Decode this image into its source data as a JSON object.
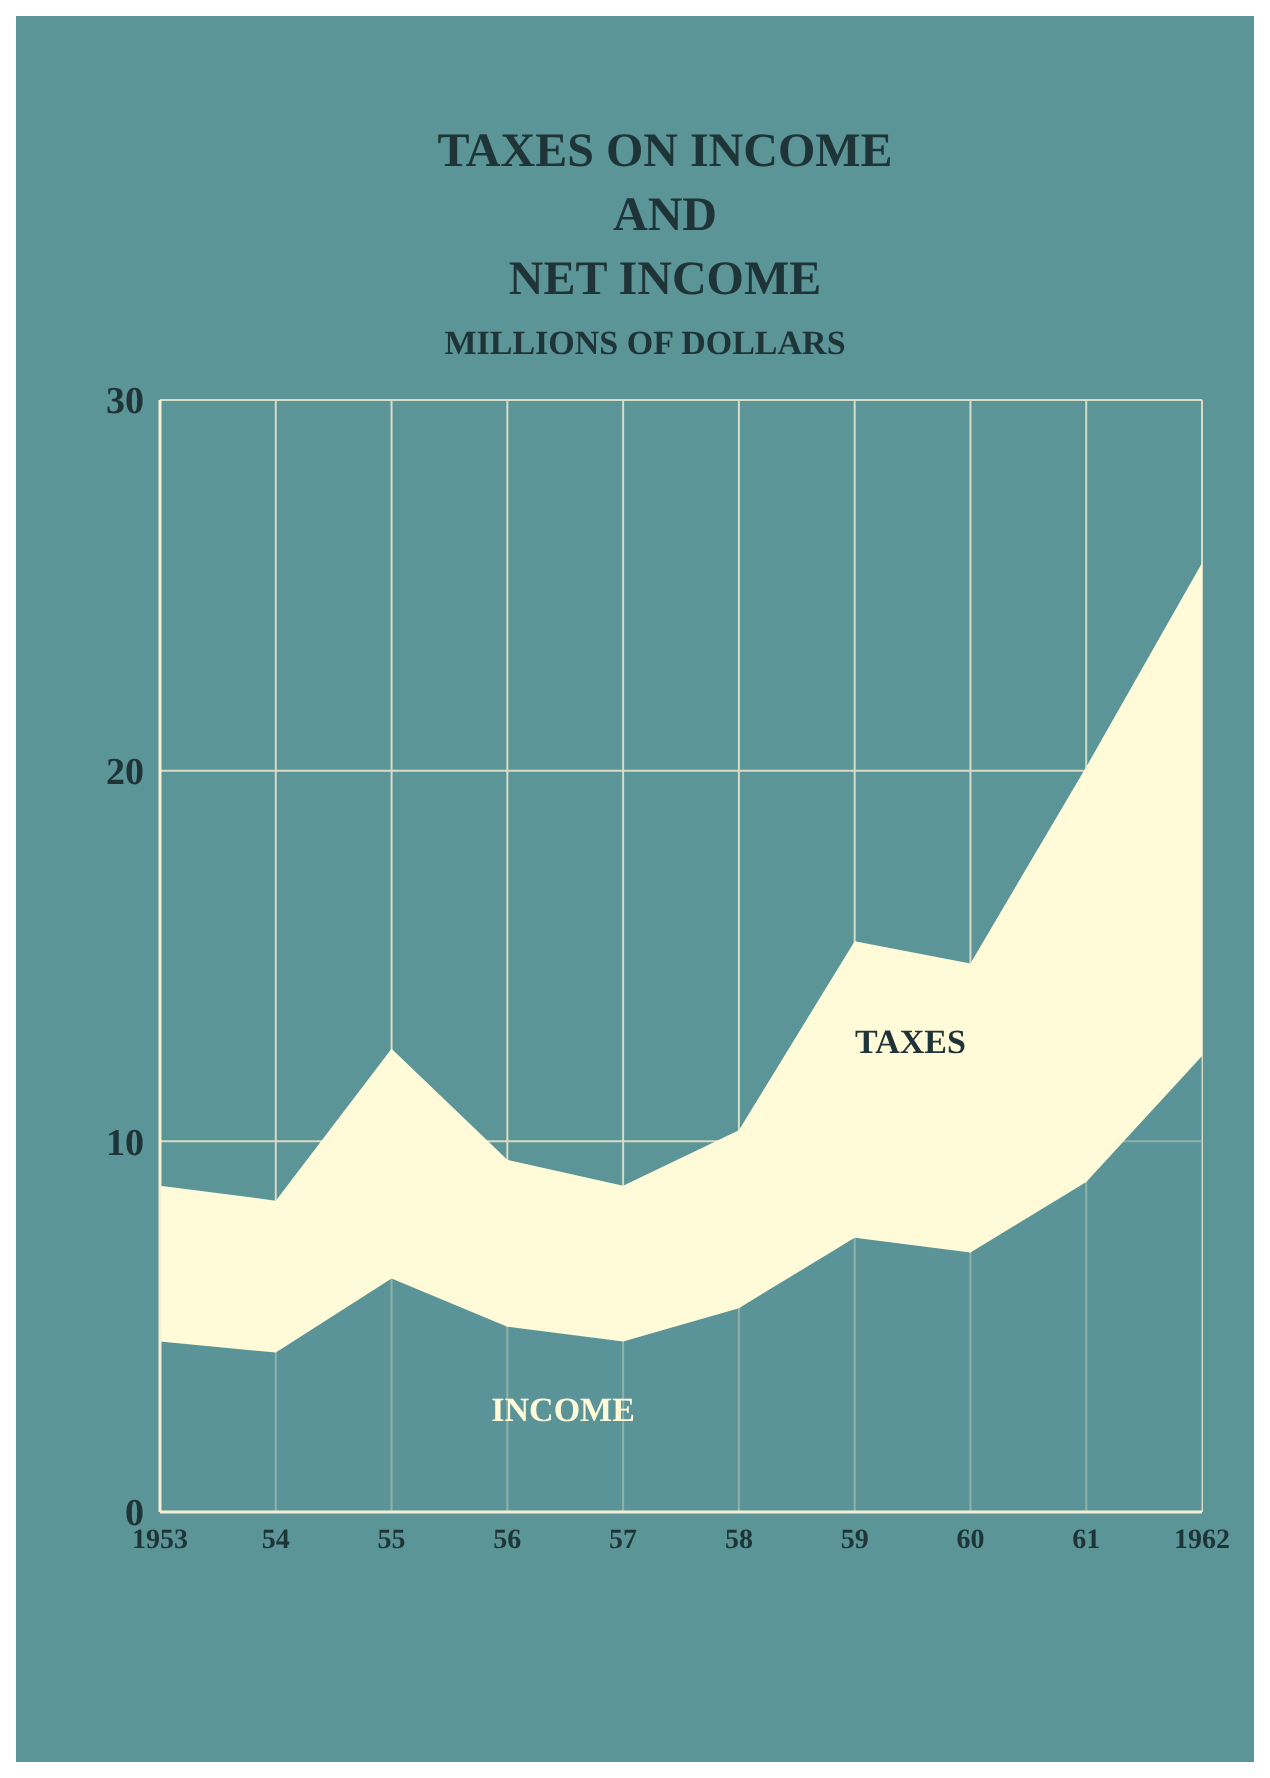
{
  "chart_data": {
    "type": "area",
    "title": "TAXES ON INCOME\nAND\nNET INCOME",
    "subtitle": "MILLIONS OF DOLLARS",
    "stacked": true,
    "categories": [
      "1953",
      "54",
      "55",
      "56",
      "57",
      "58",
      "59",
      "60",
      "61",
      "1962"
    ],
    "series": [
      {
        "name": "INCOME",
        "color": "#5b9598",
        "values": [
          4.6,
          4.3,
          6.3,
          5.0,
          4.6,
          5.5,
          7.4,
          7.0,
          8.9,
          12.3
        ]
      },
      {
        "name": "TAXES",
        "color": "#fffbd8",
        "values": [
          4.2,
          4.1,
          6.2,
          4.5,
          4.2,
          4.8,
          8.0,
          7.8,
          11.2,
          13.3
        ]
      }
    ],
    "ylim": [
      0,
      30
    ],
    "yticks": [
      0,
      10,
      20,
      30
    ],
    "grid": true,
    "legend": false
  }
}
